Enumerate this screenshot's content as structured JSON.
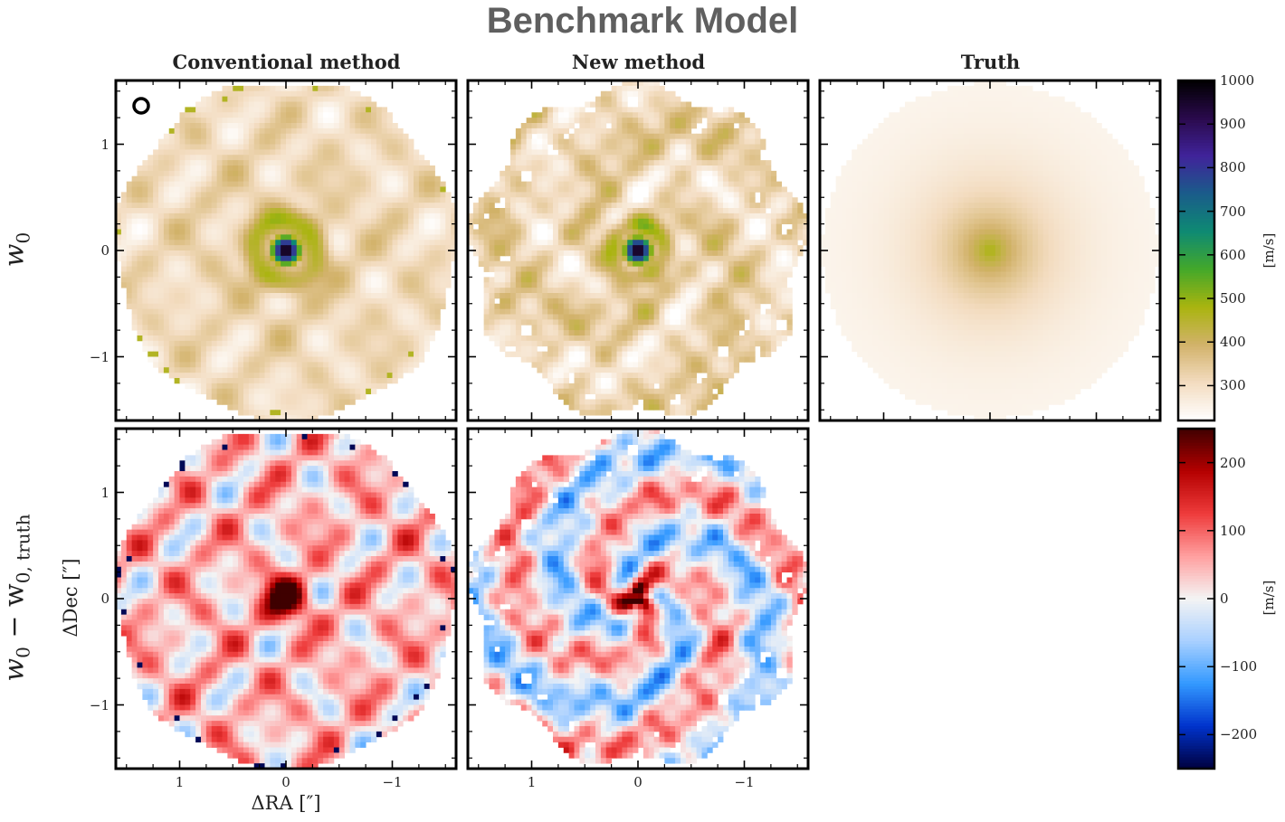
{
  "figure": {
    "title": "Benchmark Model",
    "column_titles": [
      "Conventional method",
      "New method",
      "Truth"
    ],
    "row_labels": [
      "w",
      "w"
    ],
    "row_label_subscripts": [
      "0",
      "0"
    ],
    "row2_label_rest": "− w",
    "row2_label_rest_sub": "0, truth",
    "beam_marker": "circle"
  },
  "chart_data": [
    {
      "type": "heatmap",
      "panel": "w0 conventional",
      "colormap": "gist_earth_r",
      "ylabel": "",
      "xlim": [
        1.6,
        -1.6
      ],
      "ylim": [
        -1.6,
        1.6
      ],
      "yticks": [
        -1,
        0,
        1
      ],
      "yticklabels": [
        "−1",
        "0",
        "1"
      ],
      "description_values": {
        "center_peak": 1000,
        "background": 330,
        "outer_edge_spots": 420
      }
    },
    {
      "type": "heatmap",
      "panel": "w0 new",
      "colormap": "gist_earth_r",
      "description_values": {
        "center_peak": 1000,
        "background": 320
      }
    },
    {
      "type": "heatmap",
      "panel": "w0 truth",
      "colormap": "gist_earth_r",
      "description_values": {
        "center_peak": 480,
        "edge": 240
      }
    },
    {
      "type": "heatmap",
      "panel": "residual conventional",
      "colormap": "seismic",
      "xlabel": "ΔRA [″]",
      "ylabel": "ΔDec [″]",
      "xticks": [
        1,
        0,
        -1
      ],
      "xticklabels": [
        "1",
        "0",
        "−1"
      ],
      "yticks": [
        -1,
        0,
        1
      ],
      "yticklabels": [
        "−1",
        "0",
        "1"
      ],
      "description_values": {
        "center_peak": 250,
        "mean_offset": 40
      }
    },
    {
      "type": "heatmap",
      "panel": "residual new",
      "colormap": "seismic",
      "xticks": [
        1,
        0,
        -1
      ],
      "xticklabels": [
        "1",
        "0",
        "−1"
      ],
      "description_values": {
        "center_peak": 250,
        "mean_offset": 0
      }
    }
  ],
  "colorbars": [
    {
      "label": "[m/s]",
      "range": [
        220,
        1000
      ],
      "ticks": [
        300,
        400,
        500,
        600,
        700,
        800,
        900,
        1000
      ],
      "ticklabels": [
        "300",
        "400",
        "500",
        "600",
        "700",
        "800",
        "900",
        "1000"
      ],
      "colors": [
        "#ffffff",
        "#f3dcc0",
        "#d2b26a",
        "#a9b40f",
        "#44a82a",
        "#0e8a73",
        "#1a5c8a",
        "#40239a",
        "#2a0a4c",
        "#000000"
      ]
    },
    {
      "label": "[m/s]",
      "range": [
        -250,
        250
      ],
      "ticks": [
        -200,
        -100,
        0,
        100,
        200
      ],
      "ticklabels": [
        "−200",
        "−100",
        "0",
        "100",
        "200"
      ],
      "colors": [
        "#00003f",
        "#0033cc",
        "#3399ff",
        "#a9d0ff",
        "#f4f4f4",
        "#ff9f9f",
        "#ee3b3b",
        "#b40000",
        "#3f0000"
      ]
    }
  ]
}
